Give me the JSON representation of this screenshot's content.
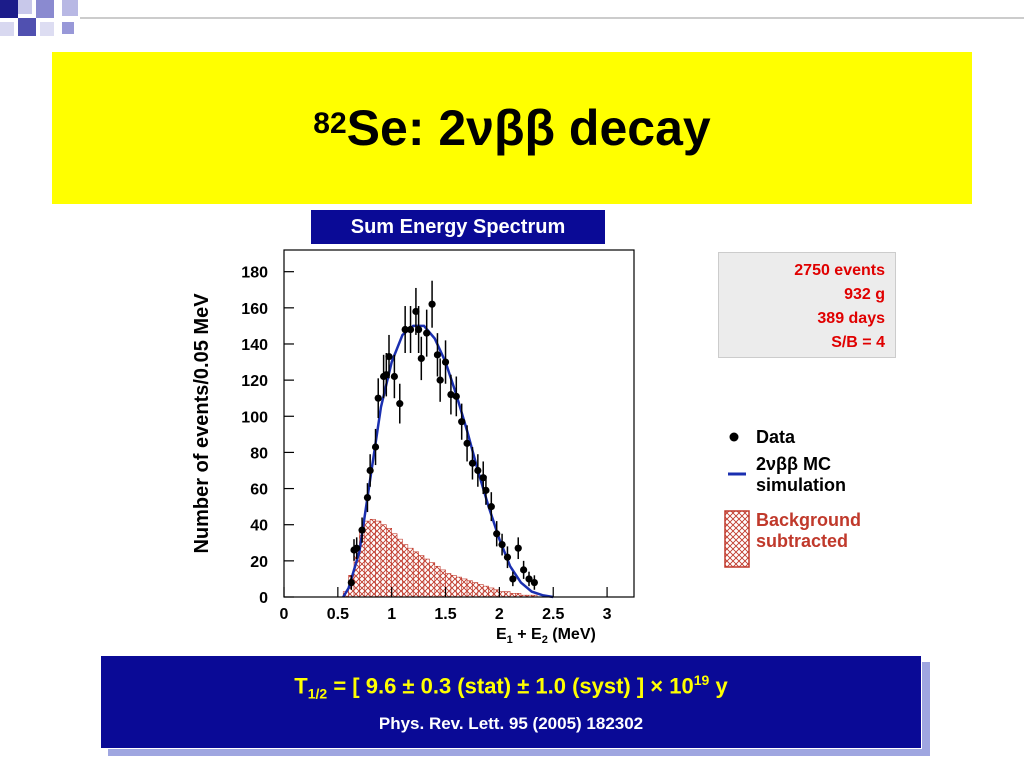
{
  "header": {
    "title_superscript": "82",
    "title": "Se: 2νββ decay",
    "subtitle": "Sum Energy Spectrum"
  },
  "info_box": {
    "lines": [
      "2750 events",
      "932 g",
      "389 days",
      "S/B = 4"
    ]
  },
  "result": {
    "symbol": "T",
    "subscript": "1/2",
    "text": " = [ 9.6 ± 0.3 (stat) ± 1.0 (syst) ] × 10",
    "exponent": "19",
    "unit": " y",
    "reference": "Phys. Rev. Lett. 95 (2005) 182302"
  },
  "chart_data": {
    "type": "scatter",
    "y_label": "Number of events/0.05 MeV",
    "x_label": {
      "parts": [
        "E",
        "1",
        " + E",
        "2",
        " (MeV)"
      ]
    },
    "xlim": [
      0,
      3.25
    ],
    "ylim": [
      0,
      192
    ],
    "xticks": [
      0,
      0.5,
      1,
      1.5,
      2,
      2.5,
      3
    ],
    "yticks": [
      0,
      20,
      40,
      60,
      80,
      100,
      120,
      140,
      160,
      180
    ],
    "series": [
      {
        "name": "Data",
        "color": "#000000",
        "x": [
          0.625,
          0.65,
          0.675,
          0.725,
          0.775,
          0.8,
          0.85,
          0.875,
          0.925,
          0.95,
          0.975,
          1.025,
          1.075,
          1.125,
          1.175,
          1.225,
          1.25,
          1.275,
          1.325,
          1.375,
          1.425,
          1.45,
          1.5,
          1.55,
          1.6,
          1.65,
          1.7,
          1.75,
          1.8,
          1.85,
          1.875,
          1.925,
          1.975,
          2.025,
          2.075,
          2.125,
          2.175,
          2.225,
          2.275,
          2.325
        ],
        "values": [
          8,
          26,
          27,
          37,
          55,
          70,
          83,
          110,
          122,
          123,
          133,
          122,
          107,
          148,
          148,
          158,
          148,
          132,
          146,
          162,
          134,
          120,
          130,
          112,
          111,
          97,
          85,
          74,
          70,
          66,
          59,
          50,
          35,
          29,
          22,
          10,
          27,
          15,
          10,
          8
        ],
        "errors": [
          4,
          6,
          6,
          7,
          8,
          9,
          10,
          11,
          12,
          12,
          12,
          12,
          11,
          13,
          13,
          13,
          13,
          12,
          13,
          13,
          12,
          12,
          12,
          11,
          11,
          10,
          10,
          9,
          9,
          9,
          8,
          8,
          7,
          6,
          6,
          4,
          6,
          5,
          4,
          4
        ]
      },
      {
        "name": "2νββ MC simulation",
        "color": "#1a2fb0",
        "x": [
          0.55,
          0.6,
          0.7,
          0.8,
          0.9,
          1.0,
          1.1,
          1.2,
          1.3,
          1.4,
          1.5,
          1.6,
          1.7,
          1.8,
          1.9,
          2.0,
          2.1,
          2.2,
          2.3,
          2.4,
          2.5
        ],
        "values": [
          0,
          5,
          25,
          65,
          105,
          130,
          145,
          150,
          150,
          143,
          130,
          112,
          92,
          70,
          50,
          32,
          17,
          8,
          3,
          1,
          0
        ]
      }
    ],
    "background": {
      "name": "Background subtracted",
      "color": "#c0392b",
      "bins": [
        0.55,
        0.6,
        0.65,
        0.7,
        0.75,
        0.8,
        0.85,
        0.9,
        0.95,
        1.0,
        1.05,
        1.1,
        1.15,
        1.2,
        1.25,
        1.3,
        1.35,
        1.4,
        1.45,
        1.5,
        1.55,
        1.6,
        1.65,
        1.7,
        1.75,
        1.8,
        1.85,
        1.9,
        1.95,
        2.0,
        2.05,
        2.1,
        2.15,
        2.2,
        2.25,
        2.3,
        2.35,
        2.4,
        2.45
      ],
      "counts": [
        3,
        12,
        25,
        38,
        42,
        43,
        42,
        40,
        38,
        35,
        32,
        29,
        27,
        25,
        23,
        21,
        19,
        17,
        15,
        13,
        12,
        11,
        10,
        9,
        8,
        7,
        6,
        5,
        4,
        3,
        3,
        2,
        2,
        1,
        1,
        1,
        0,
        0
      ]
    }
  }
}
